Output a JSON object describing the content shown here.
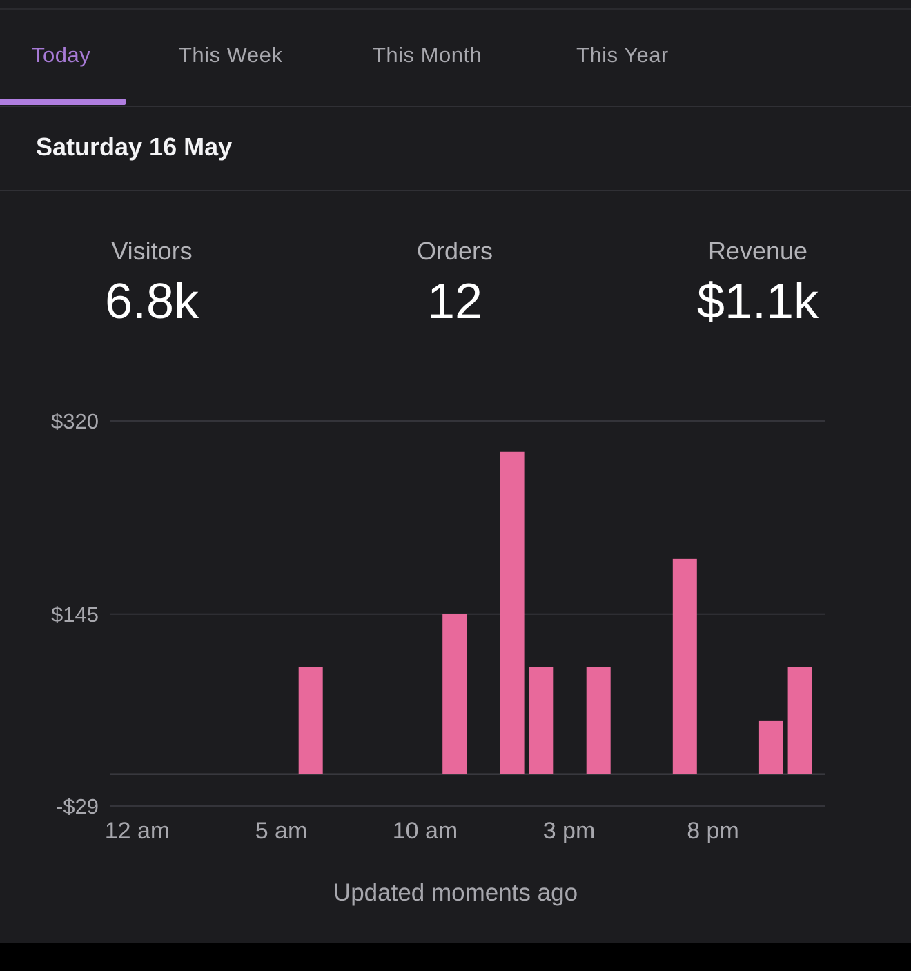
{
  "tabs": [
    {
      "label": "Today",
      "active": true
    },
    {
      "label": "This Week",
      "active": false
    },
    {
      "label": "This Month",
      "active": false
    },
    {
      "label": "This Year",
      "active": false
    }
  ],
  "date_title": "Saturday 16 May",
  "metrics": {
    "visitors": {
      "label": "Visitors",
      "value": "6.8k"
    },
    "orders": {
      "label": "Orders",
      "value": "12"
    },
    "revenue": {
      "label": "Revenue",
      "value": "$1.1k"
    }
  },
  "colors": {
    "accent": "#b07ee0",
    "bar": "#e8699b",
    "background": "#1c1c1f"
  },
  "chart_data": {
    "type": "bar",
    "title": "",
    "xlabel": "",
    "ylabel": "",
    "y_ticks": [
      "$320",
      "$145",
      "-$29"
    ],
    "y_tick_values": [
      320,
      145,
      -29
    ],
    "ylim": [
      -29,
      320
    ],
    "grid": true,
    "x_tick_labels": [
      "12 am",
      "5 am",
      "10 am",
      "3 pm",
      "8 pm"
    ],
    "x_tick_hours": [
      0,
      5,
      10,
      15,
      20
    ],
    "categories": [
      "12 am",
      "1 am",
      "2 am",
      "3 am",
      "4 am",
      "5 am",
      "6 am",
      "7 am",
      "8 am",
      "9 am",
      "10 am",
      "11 am",
      "12 pm",
      "1 pm",
      "2 pm",
      "3 pm",
      "4 pm",
      "5 pm",
      "6 pm",
      "7 pm",
      "8 pm",
      "9 pm",
      "10 pm",
      "11 pm"
    ],
    "values": [
      0,
      0,
      0,
      0,
      0,
      0,
      97,
      0,
      0,
      0,
      0,
      145,
      0,
      292,
      97,
      0,
      97,
      0,
      0,
      195,
      0,
      0,
      48,
      97
    ],
    "baseline": 0
  },
  "footer": {
    "updated": "Updated moments ago"
  }
}
